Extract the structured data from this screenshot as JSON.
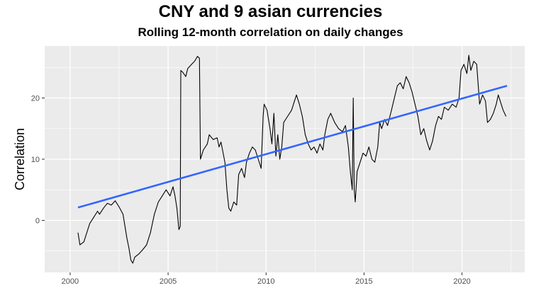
{
  "chart_data": {
    "type": "line",
    "title": "CNY and 9 asian currencies",
    "subtitle": "Rolling 12-month correlation on daily changes",
    "xlabel": "",
    "ylabel": "Correlation",
    "xlim": [
      1998.7,
      2023.2
    ],
    "ylim": [
      -8.5,
      28.5
    ],
    "x_ticks": [
      2000,
      2005,
      2010,
      2015,
      2020
    ],
    "y_ticks": [
      0,
      10,
      20
    ],
    "grid": true,
    "legend": "none",
    "colors": {
      "series": "#000000",
      "trend": "#3366ff",
      "panel": "#ebebeb",
      "grid": "#ffffff"
    },
    "series": [
      {
        "points": [
          [
            2000.4,
            -2.0
          ],
          [
            2000.5,
            -4.0
          ],
          [
            2000.7,
            -3.5
          ],
          [
            2000.9,
            -1.5
          ],
          [
            2001.0,
            -0.5
          ],
          [
            2001.2,
            0.5
          ],
          [
            2001.4,
            1.5
          ],
          [
            2001.5,
            1.0
          ],
          [
            2001.7,
            2.0
          ],
          [
            2001.9,
            2.8
          ],
          [
            2002.1,
            2.5
          ],
          [
            2002.3,
            3.2
          ],
          [
            2002.5,
            2.2
          ],
          [
            2002.7,
            1.0
          ],
          [
            2002.8,
            -1.0
          ],
          [
            2002.9,
            -3.0
          ],
          [
            2003.0,
            -4.5
          ],
          [
            2003.1,
            -6.5
          ],
          [
            2003.2,
            -7.0
          ],
          [
            2003.3,
            -6.0
          ],
          [
            2003.5,
            -5.5
          ],
          [
            2003.7,
            -4.8
          ],
          [
            2003.9,
            -4.0
          ],
          [
            2004.1,
            -2.0
          ],
          [
            2004.3,
            1.0
          ],
          [
            2004.5,
            3.0
          ],
          [
            2004.7,
            4.0
          ],
          [
            2004.9,
            5.0
          ],
          [
            2005.1,
            4.0
          ],
          [
            2005.25,
            5.5
          ],
          [
            2005.35,
            4.0
          ],
          [
            2005.45,
            2.0
          ],
          [
            2005.55,
            -1.5
          ],
          [
            2005.62,
            -1.0
          ],
          [
            2005.65,
            24.5
          ],
          [
            2005.75,
            24.2
          ],
          [
            2005.9,
            23.5
          ],
          [
            2006.0,
            24.8
          ],
          [
            2006.2,
            25.5
          ],
          [
            2006.35,
            26.0
          ],
          [
            2006.5,
            26.8
          ],
          [
            2006.6,
            26.5
          ],
          [
            2006.65,
            10.0
          ],
          [
            2006.8,
            11.5
          ],
          [
            2007.0,
            12.5
          ],
          [
            2007.1,
            14.0
          ],
          [
            2007.3,
            13.2
          ],
          [
            2007.5,
            13.5
          ],
          [
            2007.6,
            12.0
          ],
          [
            2007.7,
            12.8
          ],
          [
            2007.9,
            9.5
          ],
          [
            2008.0,
            5.0
          ],
          [
            2008.1,
            2.0
          ],
          [
            2008.2,
            1.5
          ],
          [
            2008.35,
            3.0
          ],
          [
            2008.5,
            2.5
          ],
          [
            2008.6,
            7.5
          ],
          [
            2008.75,
            8.5
          ],
          [
            2008.9,
            7.0
          ],
          [
            2009.0,
            9.5
          ],
          [
            2009.15,
            11.0
          ],
          [
            2009.3,
            12.0
          ],
          [
            2009.45,
            11.5
          ],
          [
            2009.6,
            10.0
          ],
          [
            2009.75,
            8.5
          ],
          [
            2009.85,
            17.0
          ],
          [
            2009.9,
            19.0
          ],
          [
            2010.05,
            18.0
          ],
          [
            2010.2,
            15.0
          ],
          [
            2010.3,
            12.5
          ],
          [
            2010.4,
            17.5
          ],
          [
            2010.5,
            10.5
          ],
          [
            2010.6,
            14.0
          ],
          [
            2010.7,
            10.0
          ],
          [
            2010.8,
            12.0
          ],
          [
            2010.9,
            16.0
          ],
          [
            2011.1,
            17.0
          ],
          [
            2011.3,
            18.0
          ],
          [
            2011.45,
            19.5
          ],
          [
            2011.55,
            20.5
          ],
          [
            2011.7,
            19.0
          ],
          [
            2011.85,
            17.0
          ],
          [
            2012.0,
            14.0
          ],
          [
            2012.15,
            12.5
          ],
          [
            2012.3,
            11.5
          ],
          [
            2012.45,
            12.0
          ],
          [
            2012.6,
            11.0
          ],
          [
            2012.75,
            12.5
          ],
          [
            2012.9,
            11.5
          ],
          [
            2013.0,
            14.0
          ],
          [
            2013.15,
            16.5
          ],
          [
            2013.3,
            17.5
          ],
          [
            2013.5,
            16.0
          ],
          [
            2013.7,
            15.0
          ],
          [
            2013.9,
            14.5
          ],
          [
            2014.05,
            15.5
          ],
          [
            2014.2,
            12.0
          ],
          [
            2014.3,
            8.0
          ],
          [
            2014.4,
            5.0
          ],
          [
            2014.45,
            20.0
          ],
          [
            2014.5,
            5.0
          ],
          [
            2014.55,
            3.0
          ],
          [
            2014.65,
            8.0
          ],
          [
            2014.8,
            9.5
          ],
          [
            2014.95,
            11.0
          ],
          [
            2015.1,
            10.5
          ],
          [
            2015.25,
            12.0
          ],
          [
            2015.4,
            10.0
          ],
          [
            2015.55,
            9.5
          ],
          [
            2015.7,
            12.0
          ],
          [
            2015.8,
            16.0
          ],
          [
            2015.9,
            15.0
          ],
          [
            2016.05,
            16.5
          ],
          [
            2016.2,
            15.5
          ],
          [
            2016.4,
            18.0
          ],
          [
            2016.55,
            20.0
          ],
          [
            2016.7,
            22.0
          ],
          [
            2016.85,
            22.5
          ],
          [
            2017.0,
            21.5
          ],
          [
            2017.15,
            23.5
          ],
          [
            2017.3,
            22.5
          ],
          [
            2017.45,
            21.0
          ],
          [
            2017.6,
            19.0
          ],
          [
            2017.75,
            17.0
          ],
          [
            2017.9,
            14.0
          ],
          [
            2018.05,
            15.0
          ],
          [
            2018.2,
            13.0
          ],
          [
            2018.35,
            11.5
          ],
          [
            2018.5,
            13.0
          ],
          [
            2018.65,
            15.5
          ],
          [
            2018.8,
            17.0
          ],
          [
            2018.95,
            16.5
          ],
          [
            2019.1,
            18.5
          ],
          [
            2019.3,
            18.0
          ],
          [
            2019.5,
            19.0
          ],
          [
            2019.7,
            18.5
          ],
          [
            2019.85,
            20.0
          ],
          [
            2019.95,
            24.5
          ],
          [
            2020.1,
            25.5
          ],
          [
            2020.25,
            24.0
          ],
          [
            2020.35,
            27.0
          ],
          [
            2020.45,
            24.5
          ],
          [
            2020.6,
            26.0
          ],
          [
            2020.75,
            25.5
          ],
          [
            2020.9,
            19.0
          ],
          [
            2021.05,
            20.5
          ],
          [
            2021.2,
            19.5
          ],
          [
            2021.3,
            16.0
          ],
          [
            2021.45,
            16.5
          ],
          [
            2021.6,
            17.5
          ],
          [
            2021.75,
            19.0
          ],
          [
            2021.85,
            20.5
          ],
          [
            2021.95,
            19.5
          ],
          [
            2022.1,
            18.0
          ],
          [
            2022.25,
            17.0
          ]
        ]
      },
      {
        "points": [
          [
            2000.4,
            2.1
          ],
          [
            2022.3,
            22.0
          ]
        ]
      }
    ]
  }
}
